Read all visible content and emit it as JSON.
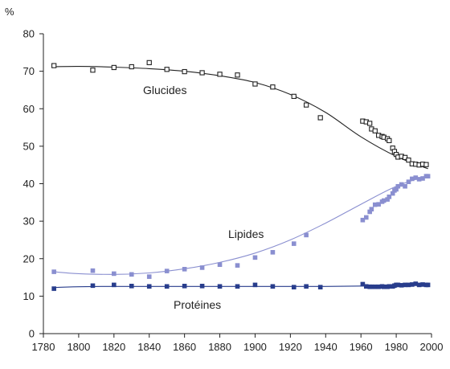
{
  "chart_data": {
    "type": "scatter",
    "ylabel": "%",
    "xlim": [
      1780,
      2000
    ],
    "ylim": [
      0,
      80
    ],
    "x_ticks": [
      1780,
      1800,
      1820,
      1840,
      1860,
      1880,
      1900,
      1920,
      1940,
      1960,
      1980,
      2000
    ],
    "y_ticks": [
      0,
      10,
      20,
      30,
      40,
      50,
      60,
      70,
      80
    ],
    "grid": false,
    "series": [
      {
        "name": "Glucides",
        "color": "#222222",
        "marker": "hollow-square",
        "points": [
          [
            1786,
            71.5
          ],
          [
            1808,
            70.3
          ],
          [
            1820,
            71
          ],
          [
            1830,
            71.2
          ],
          [
            1840,
            72.3
          ],
          [
            1850,
            70.5
          ],
          [
            1860,
            69.9
          ],
          [
            1870,
            69.6
          ],
          [
            1880,
            69.2
          ],
          [
            1890,
            69
          ],
          [
            1900,
            66.6
          ],
          [
            1910,
            65.8
          ],
          [
            1922,
            63.3
          ],
          [
            1929,
            61
          ],
          [
            1937,
            57.6
          ],
          [
            1961,
            56.7
          ],
          [
            1963,
            56.5
          ],
          [
            1965,
            56.1
          ],
          [
            1966,
            54.6
          ],
          [
            1968,
            54.1
          ],
          [
            1970,
            52.9
          ],
          [
            1972,
            52.6
          ],
          [
            1973,
            52.4
          ],
          [
            1975,
            52
          ],
          [
            1976,
            51.5
          ],
          [
            1978,
            49.5
          ],
          [
            1979,
            48.6
          ],
          [
            1980,
            47.8
          ],
          [
            1981,
            47.1
          ],
          [
            1983,
            47.3
          ],
          [
            1985,
            47
          ],
          [
            1987,
            46.3
          ],
          [
            1989,
            45.3
          ],
          [
            1991,
            45.2
          ],
          [
            1993,
            45
          ],
          [
            1995,
            45.2
          ],
          [
            1997,
            45.1
          ]
        ],
        "trend": [
          [
            1786,
            71.2
          ],
          [
            1800,
            71.3
          ],
          [
            1820,
            71.1
          ],
          [
            1840,
            70.7
          ],
          [
            1860,
            70
          ],
          [
            1880,
            68.8
          ],
          [
            1900,
            67
          ],
          [
            1920,
            63.8
          ],
          [
            1940,
            59
          ],
          [
            1960,
            52.5
          ],
          [
            1980,
            47.3
          ],
          [
            1998,
            44
          ]
        ]
      },
      {
        "name": "Lipides",
        "color": "#8a8fd0",
        "marker": "filled-square",
        "points": [
          [
            1786,
            16.5
          ],
          [
            1808,
            16.8
          ],
          [
            1820,
            16
          ],
          [
            1830,
            15.8
          ],
          [
            1840,
            15.2
          ],
          [
            1850,
            16.7
          ],
          [
            1860,
            17.2
          ],
          [
            1870,
            17.6
          ],
          [
            1880,
            18.4
          ],
          [
            1890,
            18.2
          ],
          [
            1900,
            20.3
          ],
          [
            1910,
            21.7
          ],
          [
            1922,
            24
          ],
          [
            1929,
            26.3
          ],
          [
            1961,
            30.3
          ],
          [
            1963,
            31
          ],
          [
            1965,
            32.5
          ],
          [
            1966,
            33.2
          ],
          [
            1968,
            34.4
          ],
          [
            1970,
            34.5
          ],
          [
            1972,
            35.2
          ],
          [
            1973,
            35.5
          ],
          [
            1975,
            35.8
          ],
          [
            1976,
            36.5
          ],
          [
            1978,
            37.4
          ],
          [
            1979,
            38.2
          ],
          [
            1980,
            38.5
          ],
          [
            1981,
            39.3
          ],
          [
            1983,
            39.8
          ],
          [
            1985,
            39.3
          ],
          [
            1987,
            40.5
          ],
          [
            1989,
            41.3
          ],
          [
            1991,
            41.6
          ],
          [
            1993,
            41.2
          ],
          [
            1995,
            41.4
          ],
          [
            1997,
            42
          ],
          [
            1998,
            42
          ]
        ],
        "trend": [
          [
            1786,
            16.5
          ],
          [
            1800,
            16
          ],
          [
            1820,
            15.8
          ],
          [
            1840,
            16.2
          ],
          [
            1860,
            17.3
          ],
          [
            1880,
            19
          ],
          [
            1900,
            21.5
          ],
          [
            1920,
            25
          ],
          [
            1940,
            29.5
          ],
          [
            1960,
            34.5
          ],
          [
            1980,
            39.3
          ],
          [
            1998,
            42.2
          ]
        ]
      },
      {
        "name": "Protéines",
        "color": "#283d8c",
        "marker": "filled-square",
        "points": [
          [
            1786,
            12
          ],
          [
            1808,
            12.8
          ],
          [
            1820,
            13
          ],
          [
            1830,
            12.7
          ],
          [
            1840,
            12.6
          ],
          [
            1850,
            12.6
          ],
          [
            1860,
            12.7
          ],
          [
            1870,
            12.7
          ],
          [
            1880,
            12.6
          ],
          [
            1890,
            12.6
          ],
          [
            1900,
            13
          ],
          [
            1910,
            12.6
          ],
          [
            1922,
            12.4
          ],
          [
            1929,
            12.6
          ],
          [
            1937,
            12.4
          ],
          [
            1961,
            13.2
          ],
          [
            1963,
            12.6
          ],
          [
            1965,
            12.5
          ],
          [
            1966,
            12.5
          ],
          [
            1968,
            12.5
          ],
          [
            1970,
            12.5
          ],
          [
            1972,
            12.6
          ],
          [
            1973,
            12.5
          ],
          [
            1975,
            12.5
          ],
          [
            1976,
            12.6
          ],
          [
            1978,
            12.6
          ],
          [
            1979,
            12.8
          ],
          [
            1980,
            13
          ],
          [
            1981,
            13
          ],
          [
            1983,
            12.9
          ],
          [
            1985,
            13
          ],
          [
            1987,
            13
          ],
          [
            1989,
            13.1
          ],
          [
            1991,
            13.3
          ],
          [
            1993,
            13
          ],
          [
            1995,
            13.1
          ],
          [
            1997,
            13
          ],
          [
            1998,
            13
          ]
        ],
        "trend": [
          [
            1786,
            12.3
          ],
          [
            1800,
            12.5
          ],
          [
            1820,
            12.6
          ],
          [
            1840,
            12.6
          ],
          [
            1860,
            12.6
          ],
          [
            1880,
            12.6
          ],
          [
            1900,
            12.6
          ],
          [
            1920,
            12.6
          ],
          [
            1940,
            12.6
          ],
          [
            1960,
            12.7
          ],
          [
            1980,
            12.8
          ],
          [
            1998,
            13
          ]
        ]
      }
    ]
  }
}
